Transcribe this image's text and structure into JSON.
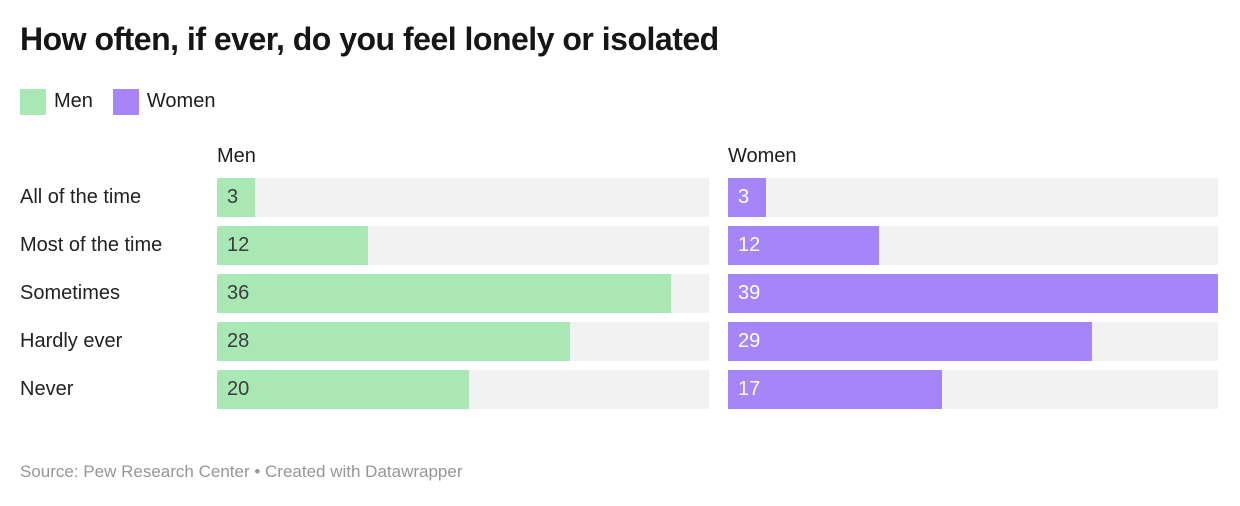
{
  "header": {
    "title": "How often, if ever, do you feel lonely or isolated"
  },
  "legend": {
    "items": [
      {
        "label": "Men",
        "color": "#a9e8b5"
      },
      {
        "label": "Women",
        "color": "#a685f8"
      }
    ]
  },
  "chart_data": {
    "type": "bar",
    "layout": "horizontal-split-columns",
    "title": "How often, if ever, do you feel lonely or isolated",
    "categories": [
      "All of the time",
      "Most of the time",
      "Sometimes",
      "Hardly ever",
      "Never"
    ],
    "series": [
      {
        "name": "Men",
        "values": [
          3,
          12,
          36,
          28,
          20
        ],
        "color": "#a9e8b5",
        "value_label_color": "#3c3c3c"
      },
      {
        "name": "Women",
        "values": [
          3,
          12,
          39,
          29,
          17
        ],
        "color": "#a685f8",
        "value_label_color": "#ffffff"
      }
    ],
    "xlim": [
      0,
      39
    ],
    "track_color": "#f2f2f2",
    "grid": false,
    "value_labels": "inside-left",
    "legend_position": "top"
  },
  "footer": {
    "source": "Source: Pew Research Center • Created with Datawrapper"
  }
}
